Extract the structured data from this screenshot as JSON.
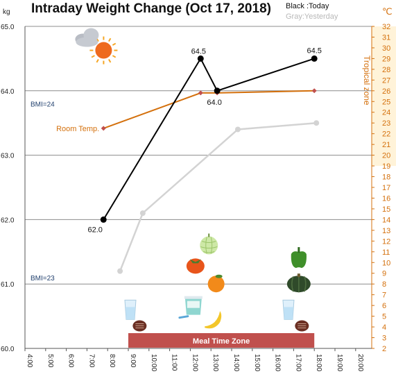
{
  "chart_data": {
    "type": "line",
    "title": "Intraday Weight Change (Oct 17, 2018)",
    "legend": {
      "today": "Black :Today",
      "yesterday": "Gray:Yesterday",
      "placement": "top-right"
    },
    "y_unit": "kg",
    "y2_unit": "℃",
    "ylim": [
      60.0,
      65.0
    ],
    "y2lim": [
      2,
      32
    ],
    "xlim": [
      4,
      20.5
    ],
    "y_ticks": [
      "60.0",
      "61.0",
      "62.0",
      "63.0",
      "64.0",
      "65.0"
    ],
    "y2_ticks": [
      "2",
      "3",
      "4",
      "5",
      "6",
      "7",
      "8",
      "9",
      "10",
      "11",
      "12",
      "13",
      "14",
      "15",
      "16",
      "17",
      "18",
      "19",
      "20",
      "21",
      "22",
      "23",
      "24",
      "25",
      "26",
      "27",
      "28",
      "29",
      "30",
      "31",
      "32"
    ],
    "x_ticks": [
      "4:00",
      "5:00",
      "6:00",
      "7:00",
      "8:00",
      "9:00",
      "10:00",
      "11:00",
      "12:00",
      "13:00",
      "14:00",
      "15:00",
      "16:00",
      "17:00",
      "18:00",
      "19:00",
      "20:00"
    ],
    "grid": "horizontal",
    "series": [
      {
        "name": "Today",
        "color": "#000000",
        "points": [
          {
            "x": 7.8,
            "y": 62.0
          },
          {
            "x": 12.5,
            "y": 64.5
          },
          {
            "x": 13.3,
            "y": 64.0
          },
          {
            "x": 18.0,
            "y": 64.5
          }
        ],
        "labels": [
          "62.0",
          "64.5",
          "64.0",
          "64.5"
        ]
      },
      {
        "name": "Yesterday",
        "color": "#d3d3d3",
        "points": [
          {
            "x": 8.6,
            "y": 61.2
          },
          {
            "x": 9.7,
            "y": 62.1
          },
          {
            "x": 14.3,
            "y": 63.4
          },
          {
            "x": 18.1,
            "y": 63.5
          }
        ]
      },
      {
        "name": "Room Temp.",
        "color": "#d4700c",
        "axis": "right",
        "points": [
          {
            "x": 7.8,
            "y": 22.5
          },
          {
            "x": 12.5,
            "y": 25.8
          },
          {
            "x": 13.3,
            "y": 25.8
          },
          {
            "x": 18.0,
            "y": 26.0
          }
        ]
      }
    ],
    "bmi_lines": [
      {
        "label": "BMI=24",
        "y": 63.8
      },
      {
        "label": "BMI=23",
        "y": 61.1
      }
    ],
    "tropical_zone": {
      "label": "Tropical zone",
      "from": 19,
      "to": 32
    },
    "meal_time_zone": {
      "label": "Meal Time Zone",
      "from": 9.0,
      "to": 18.0,
      "color": "#c0504d"
    }
  },
  "illustrations": [
    {
      "icon": "weather-cloud-sun-icon",
      "x": 7.0,
      "y": 64.8
    },
    {
      "icon": "melon-icon",
      "x": 12.9,
      "y": 61.6
    },
    {
      "icon": "persimmon-icon",
      "x": 12.25,
      "y": 61.3
    },
    {
      "icon": "orange-icon",
      "x": 13.25,
      "y": 61.0
    },
    {
      "icon": "bell-pepper-icon",
      "x": 17.25,
      "y": 61.4
    },
    {
      "icon": "pumpkin-icon",
      "x": 17.25,
      "y": 61.0
    },
    {
      "icon": "water-glass-icon",
      "x": 9.1,
      "y": 60.6
    },
    {
      "icon": "yogurt-icon",
      "x": 12.15,
      "y": 60.65
    },
    {
      "icon": "banana-icon",
      "x": 13.1,
      "y": 60.45
    },
    {
      "icon": "water-glass-icon",
      "x": 16.75,
      "y": 60.6
    },
    {
      "icon": "chocolate-icon",
      "x": 9.55,
      "y": 60.35
    },
    {
      "icon": "chocolate-icon",
      "x": 17.4,
      "y": 60.35
    }
  ]
}
